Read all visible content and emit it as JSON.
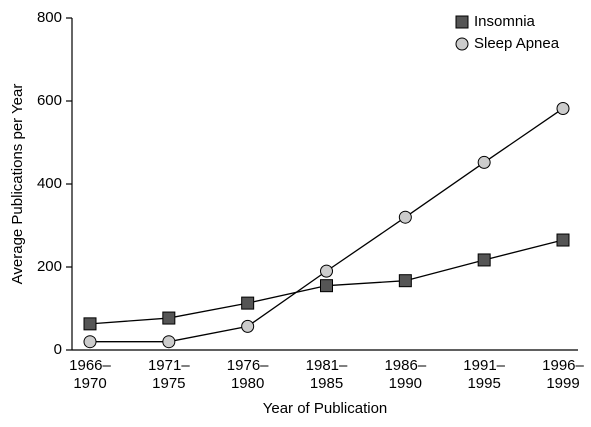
{
  "chart_data": {
    "type": "line",
    "x_label": "Year of Publication",
    "y_label": "Average Publications per Year",
    "categories": [
      "1966–1970",
      "1971–1975",
      "1976–1980",
      "1981–1985",
      "1986–1990",
      "1991–1995",
      "1996–1999"
    ],
    "series": [
      {
        "name": "Insomnia",
        "color": "#555555",
        "marker": "square",
        "values": [
          63,
          77,
          113,
          155,
          167,
          217,
          265
        ]
      },
      {
        "name": "Sleep Apnea",
        "color": "#cccccc",
        "marker": "circle",
        "values": [
          20,
          20,
          57,
          190,
          320,
          452,
          582
        ]
      }
    ],
    "ylim": [
      0,
      800
    ],
    "yticks": [
      0,
      200,
      400,
      600,
      800
    ],
    "legend": "upper right",
    "grid": false
  }
}
